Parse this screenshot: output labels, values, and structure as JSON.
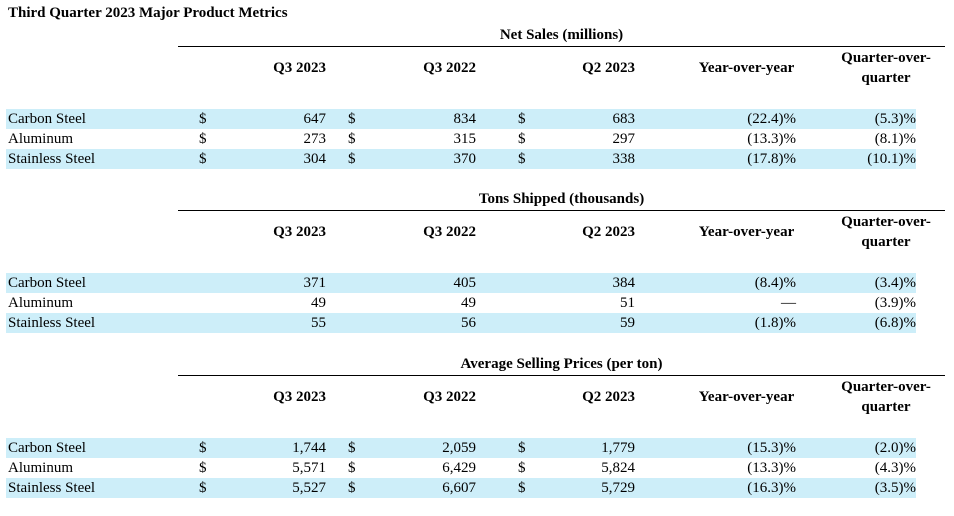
{
  "title": "Third Quarter 2023 Major Product Metrics",
  "columns": {
    "q3_2023": "Q3 2023",
    "q3_2022": "Q3 2022",
    "q2_2023": "Q2 2023",
    "yoy": "Year-over-year",
    "qoq_line1": "Quarter-over-",
    "qoq_line2": "quarter"
  },
  "sections": [
    {
      "title": "Net Sales (millions)",
      "rows": [
        {
          "label": "Carbon Steel",
          "cur1": "$",
          "q3_2023": "647",
          "cur2": "$",
          "q3_2022": "834",
          "cur3": "$",
          "q2_2023": "683",
          "yoy": "(22.4)%",
          "qoq": "(5.3)%"
        },
        {
          "label": "Aluminum",
          "cur1": "$",
          "q3_2023": "273",
          "cur2": "$",
          "q3_2022": "315",
          "cur3": "$",
          "q2_2023": "297",
          "yoy": "(13.3)%",
          "qoq": "(8.1)%"
        },
        {
          "label": "Stainless Steel",
          "cur1": "$",
          "q3_2023": "304",
          "cur2": "$",
          "q3_2022": "370",
          "cur3": "$",
          "q2_2023": "338",
          "yoy": "(17.8)%",
          "qoq": "(10.1)%"
        }
      ]
    },
    {
      "title": "Tons Shipped (thousands)",
      "rows": [
        {
          "label": "Carbon Steel",
          "cur1": "",
          "q3_2023": "371",
          "cur2": "",
          "q3_2022": "405",
          "cur3": "",
          "q2_2023": "384",
          "yoy": "(8.4)%",
          "qoq": "(3.4)%"
        },
        {
          "label": "Aluminum",
          "cur1": "",
          "q3_2023": "49",
          "cur2": "",
          "q3_2022": "49",
          "cur3": "",
          "q2_2023": "51",
          "yoy": "—",
          "qoq": "(3.9)%"
        },
        {
          "label": "Stainless Steel",
          "cur1": "",
          "q3_2023": "55",
          "cur2": "",
          "q3_2022": "56",
          "cur3": "",
          "q2_2023": "59",
          "yoy": "(1.8)%",
          "qoq": "(6.8)%"
        }
      ]
    },
    {
      "title": "Average Selling Prices (per ton)",
      "rows": [
        {
          "label": "Carbon Steel",
          "cur1": "$",
          "q3_2023": "1,744",
          "cur2": "$",
          "q3_2022": "2,059",
          "cur3": "$",
          "q2_2023": "1,779",
          "yoy": "(15.3)%",
          "qoq": "(2.0)%"
        },
        {
          "label": "Aluminum",
          "cur1": "$",
          "q3_2023": "5,571",
          "cur2": "$",
          "q3_2022": "6,429",
          "cur3": "$",
          "q2_2023": "5,824",
          "yoy": "(13.3)%",
          "qoq": "(4.3)%"
        },
        {
          "label": "Stainless Steel",
          "cur1": "$",
          "q3_2023": "5,527",
          "cur2": "$",
          "q3_2022": "6,607",
          "cur3": "$",
          "q2_2023": "5,729",
          "yoy": "(16.3)%",
          "qoq": "(3.5)%"
        }
      ]
    }
  ]
}
